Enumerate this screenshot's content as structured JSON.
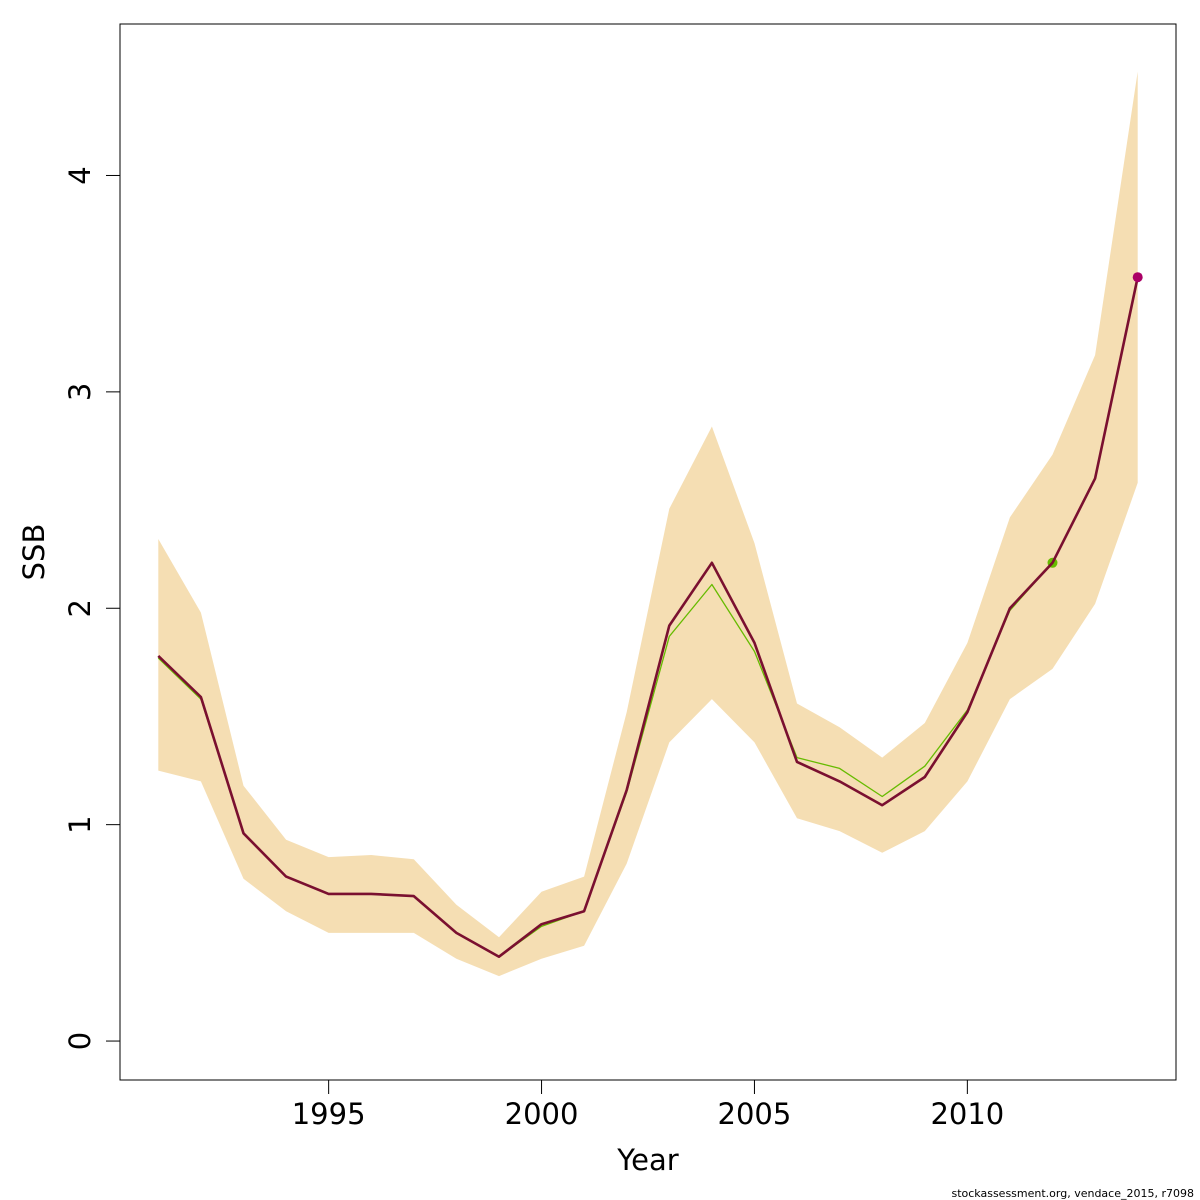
{
  "chart_data": {
    "type": "line",
    "xlabel": "Year",
    "ylabel": "SSB",
    "xlim": [
      1990.1,
      2014.9
    ],
    "ylim": [
      -0.18,
      4.7
    ],
    "x_ticks": [
      1995,
      2000,
      2005,
      2010
    ],
    "x_tick_labels": [
      "1995",
      "2000",
      "2005",
      "2010"
    ],
    "y_ticks": [
      0,
      1,
      2,
      3,
      4
    ],
    "y_tick_labels": [
      "0",
      "1",
      "2",
      "3",
      "4"
    ],
    "grid": false,
    "legend": "none",
    "x": [
      1991,
      1992,
      1993,
      1994,
      1995,
      1996,
      1997,
      1998,
      1999,
      2000,
      2001,
      2002,
      2003,
      2004,
      2005,
      2006,
      2007,
      2008,
      2009,
      2010,
      2011,
      2012,
      2013,
      2014
    ],
    "band": {
      "name": "confidence interval",
      "color": "#f5deb3",
      "lower": [
        1.25,
        1.2,
        0.75,
        0.6,
        0.5,
        0.5,
        0.5,
        0.38,
        0.3,
        0.38,
        0.44,
        0.82,
        1.38,
        1.58,
        1.38,
        1.03,
        0.97,
        0.87,
        0.97,
        1.2,
        1.58,
        1.72,
        2.02,
        2.58
      ],
      "upper": [
        2.32,
        1.98,
        1.18,
        0.93,
        0.85,
        0.86,
        0.84,
        0.63,
        0.48,
        0.69,
        0.76,
        1.52,
        2.46,
        2.84,
        2.3,
        1.56,
        1.45,
        1.31,
        1.47,
        1.84,
        2.42,
        2.71,
        3.17,
        4.48
      ]
    },
    "series": [
      {
        "color": "#66bb00",
        "values": [
          1.77,
          1.58,
          0.96,
          0.76,
          0.68,
          0.68,
          0.67,
          0.5,
          0.39,
          0.53,
          0.6,
          1.15,
          1.87,
          2.11,
          1.8,
          1.31,
          1.26,
          1.13,
          1.27,
          1.53,
          1.99,
          2.21,
          null,
          null
        ],
        "endpoint": {
          "x": 2012,
          "y": 2.21
        }
      },
      {
        "color": "#7a1030",
        "values": [
          1.78,
          1.59,
          0.96,
          0.76,
          0.68,
          0.68,
          0.67,
          0.5,
          0.39,
          0.54,
          0.6,
          1.16,
          1.92,
          2.21,
          1.84,
          1.29,
          1.2,
          1.09,
          1.22,
          1.52,
          2.0,
          2.21,
          2.6,
          3.53
        ],
        "endpoint": {
          "x": 2014,
          "y": 3.53,
          "color": "#aa0066"
        }
      }
    ]
  },
  "footnote": "stockassessment.org, vendace_2015, r7098"
}
